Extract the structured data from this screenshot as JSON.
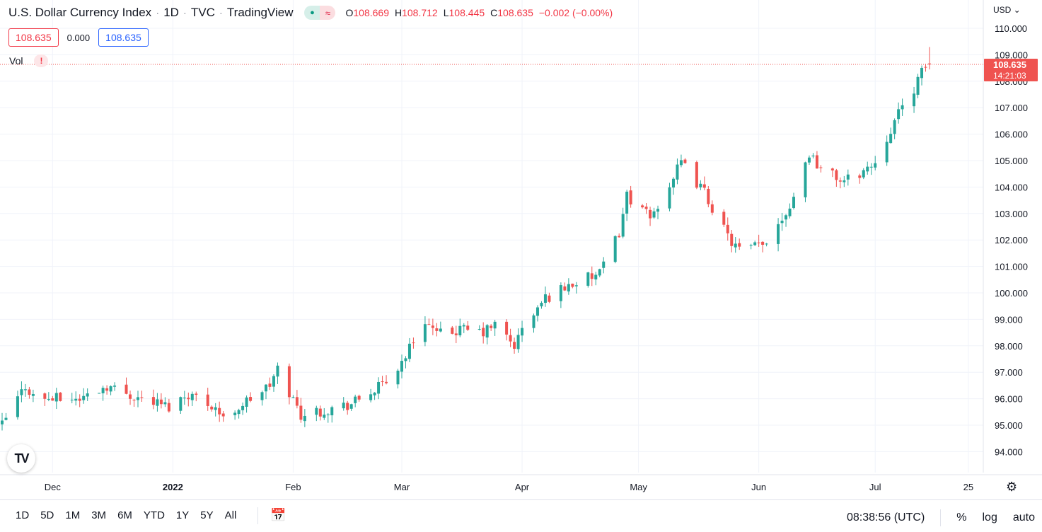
{
  "header": {
    "title": "U.S. Dollar Currency Index",
    "interval": "1D",
    "exchange": "TVC",
    "source": "TradingView",
    "open_label": "O",
    "open": "108.669",
    "high_label": "H",
    "high": "108.712",
    "low_label": "L",
    "low": "108.445",
    "close_label": "C",
    "close": "108.635",
    "change": "−0.002 (−0.00%)"
  },
  "legend_boxes": {
    "bid": "108.635",
    "spread": "0.000",
    "ask": "108.635"
  },
  "volume_label": "Vol",
  "currency": "USD",
  "price_tag": {
    "price": "108.635",
    "countdown": "14:21:03"
  },
  "colors": {
    "up": "#26a69a",
    "down": "#ef5350",
    "grid": "#f0f3fa",
    "axis_text": "#131722"
  },
  "chart_data": {
    "type": "candlestick",
    "title": "U.S. Dollar Currency Index",
    "ylim": [
      93.4,
      110.8
    ],
    "y_ticks": [
      "110.000",
      "109.000",
      "108.000",
      "107.000",
      "106.000",
      "105.000",
      "104.000",
      "103.000",
      "102.000",
      "101.000",
      "100.000",
      "99.000",
      "98.000",
      "97.000",
      "96.000",
      "95.000",
      "94.000"
    ],
    "x_ticks": [
      "Dec",
      "2022",
      "Feb",
      "Mar",
      "Apr",
      "May",
      "Jun",
      "Jul",
      "25"
    ],
    "anchors": [
      [
        "2021-11-18",
        95.0
      ],
      [
        "2021-11-24",
        96.5
      ],
      [
        "2021-11-26",
        96.1
      ],
      [
        "2021-11-30",
        96.0
      ],
      [
        "2021-12-08",
        96.0
      ],
      [
        "2021-12-15",
        96.5
      ],
      [
        "2021-12-20",
        96.2
      ],
      [
        "2021-12-31",
        95.7
      ],
      [
        "2022-01-05",
        96.2
      ],
      [
        "2022-01-12",
        95.7
      ],
      [
        "2022-01-14",
        95.2
      ],
      [
        "2022-01-18",
        95.7
      ],
      [
        "2022-01-26",
        96.5
      ],
      [
        "2022-01-28",
        97.1
      ],
      [
        "2022-02-03",
        95.4
      ],
      [
        "2022-02-10",
        95.6
      ],
      [
        "2022-02-16",
        95.8
      ],
      [
        "2022-02-25",
        96.6
      ],
      [
        "2022-03-01",
        97.4
      ],
      [
        "2022-03-07",
        99.0
      ],
      [
        "2022-03-10",
        98.4
      ],
      [
        "2022-03-16",
        98.6
      ],
      [
        "2022-03-22",
        98.5
      ],
      [
        "2022-03-25",
        98.8
      ],
      [
        "2022-03-30",
        98.0
      ],
      [
        "2022-04-01",
        98.6
      ],
      [
        "2022-04-07",
        99.8
      ],
      [
        "2022-04-13",
        100.3
      ],
      [
        "2022-04-21",
        100.7
      ],
      [
        "2022-04-26",
        102.3
      ],
      [
        "2022-04-28",
        103.7
      ],
      [
        "2022-05-04",
        102.8
      ],
      [
        "2022-05-12",
        104.9
      ],
      [
        "2022-05-18",
        103.8
      ],
      [
        "2022-05-24",
        102.1
      ],
      [
        "2022-05-27",
        101.6
      ],
      [
        "2022-06-02",
        101.8
      ],
      [
        "2022-06-09",
        103.3
      ],
      [
        "2022-06-14",
        105.3
      ],
      [
        "2022-06-17",
        104.7
      ],
      [
        "2022-06-23",
        104.2
      ],
      [
        "2022-06-30",
        104.8
      ],
      [
        "2022-07-01",
        105.0
      ],
      [
        "2022-07-06",
        106.5
      ],
      [
        "2022-07-12",
        108.0
      ],
      [
        "2022-07-14",
        108.6
      ],
      [
        "2022-07-15",
        108.635
      ]
    ]
  },
  "time_axis_bottom": {
    "ranges": [
      "1D",
      "5D",
      "1M",
      "3M",
      "6M",
      "YTD",
      "1Y",
      "5Y",
      "All"
    ],
    "clock": "08:38:56 (UTC)",
    "percent": "%",
    "log": "log",
    "auto": "auto"
  }
}
